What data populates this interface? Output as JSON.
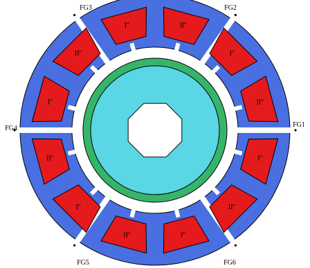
{
  "colors": {
    "stator": "#4a6fe0",
    "coil": "#e41a1c",
    "gap": "#ffffff",
    "rotor_ring": "#36b56a",
    "rotor_core": "#5ad6e4",
    "outline": "#000000"
  },
  "coils": [
    {
      "label": "I''"
    },
    {
      "label": "II''"
    },
    {
      "label": "I''"
    },
    {
      "label": "II''"
    },
    {
      "label": "I''"
    },
    {
      "label": "II''"
    },
    {
      "label": "I''"
    },
    {
      "label": "II''"
    },
    {
      "label": "I''"
    },
    {
      "label": "II''"
    },
    {
      "label": "I''"
    },
    {
      "label": "II''"
    }
  ],
  "flux_gaps": [
    {
      "label": "FG1"
    },
    {
      "label": "FG2"
    },
    {
      "label": "FG3"
    },
    {
      "label": "FG4"
    },
    {
      "label": "FG5"
    },
    {
      "label": "FG6"
    }
  ]
}
